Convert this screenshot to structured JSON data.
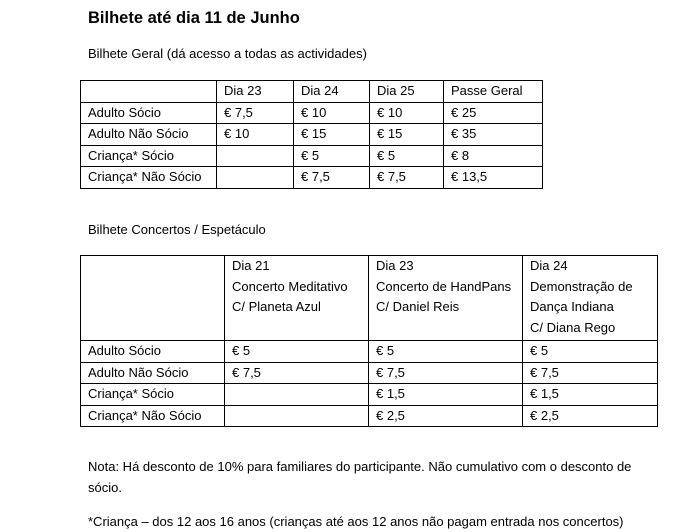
{
  "title": "Bilhete até dia 11 de Junho",
  "general": {
    "heading": "Bilhete Geral (dá acesso a todas as actividades)",
    "columns": [
      "",
      "Dia 23",
      "Dia 24",
      "Dia 25",
      "Passe Geral"
    ],
    "rows": [
      [
        "Adulto Sócio",
        "€ 7,5",
        "€ 10",
        "€ 10",
        "€ 25"
      ],
      [
        "Adulto Não Sócio",
        "€ 10",
        "€ 15",
        "€ 15",
        "€ 35"
      ],
      [
        "Criança* Sócio",
        "",
        "€ 5",
        "€ 5",
        "€ 8"
      ],
      [
        "Criança* Não Sócio",
        "",
        "€ 7,5",
        "€ 7,5",
        "€ 13,5"
      ]
    ]
  },
  "concerts": {
    "heading": "Bilhete Concertos / Espetáculo",
    "columns": [
      [
        ""
      ],
      [
        "Dia 21",
        "Concerto Meditativo",
        "C/ Planeta Azul"
      ],
      [
        "Dia 23",
        "Concerto de HandPans",
        "C/ Daniel Reis"
      ],
      [
        "Dia 24",
        "Demonstração de",
        "Dança Indiana",
        "C/ Diana Rego"
      ]
    ],
    "rows": [
      [
        "Adulto Sócio",
        "€ 5",
        "€ 5",
        "€ 5"
      ],
      [
        "Adulto Não Sócio",
        "€ 7,5",
        "€ 7,5",
        "€ 7,5"
      ],
      [
        "Criança* Sócio",
        "",
        "€ 1,5",
        "€ 1,5"
      ],
      [
        "Criança* Não Sócio",
        "",
        "€ 2,5",
        "€ 2,5"
      ]
    ]
  },
  "notes": {
    "discount_line1": "Nota: Há desconto de 10% para familiares do participante. Não cumulativo com o desconto de",
    "discount_line2": "sócio.",
    "child": "*Criança – dos 12 aos 16 anos (crianças até aos 12 anos não pagam entrada nos concertos)"
  }
}
